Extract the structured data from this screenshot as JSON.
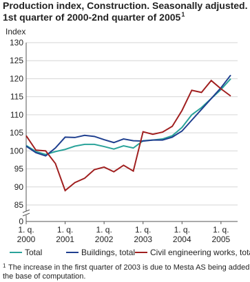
{
  "chart_data": {
    "type": "line",
    "title": [
      "Production index, Construction. Seasonally adjusted.",
      "1st quarter of 2000-2nd quarter of 2005"
    ],
    "title_marker": "1",
    "y_label": "Index",
    "categories": [
      [
        "1. q.",
        "2000"
      ],
      null,
      null,
      null,
      [
        "1. q.",
        "2001"
      ],
      null,
      null,
      null,
      [
        "1. q.",
        "2002"
      ],
      null,
      null,
      null,
      [
        "1. q.",
        "2003"
      ],
      null,
      null,
      null,
      [
        "1. q.",
        "2004"
      ],
      null,
      null,
      null,
      [
        "1. q.",
        "2005"
      ],
      null
    ],
    "series": [
      {
        "name": "Total",
        "color": "#2aa39a",
        "values": [
          101.5,
          99.8,
          99.0,
          99.8,
          100.4,
          101.3,
          101.8,
          101.8,
          101.2,
          100.5,
          101.4,
          100.8,
          102.8,
          103.0,
          103.3,
          104.2,
          106.5,
          110.0,
          112.0,
          114.5,
          117.0,
          120.0
        ]
      },
      {
        "name": "Buildings, total",
        "color": "#1f3f8f",
        "values": [
          101.3,
          99.5,
          98.6,
          100.8,
          103.8,
          103.7,
          104.3,
          104.0,
          103.1,
          102.3,
          103.3,
          102.8,
          102.7,
          103.0,
          103.0,
          103.8,
          105.5,
          108.5,
          111.5,
          114.5,
          117.5,
          121.0
        ]
      },
      {
        "name": "Civil engineering works, total",
        "color": "#a01f1f",
        "values": [
          104.2,
          100.2,
          100.0,
          96.5,
          89.0,
          91.2,
          92.4,
          94.8,
          95.5,
          94.2,
          96.0,
          94.4,
          105.3,
          104.6,
          105.2,
          106.8,
          111.2,
          116.8,
          116.2,
          119.5,
          117.2,
          115.2
        ]
      }
    ],
    "ylim": [
      0,
      130
    ],
    "yticks": [
      0,
      85,
      90,
      95,
      100,
      105,
      110,
      115,
      120,
      125,
      130
    ],
    "axis_break": true,
    "grid": true,
    "footnote": {
      "marker": "1",
      "text": [
        "The increase in the first quarter of 2003 is due to Mesta AS being added to",
        "the base of computation."
      ]
    }
  }
}
